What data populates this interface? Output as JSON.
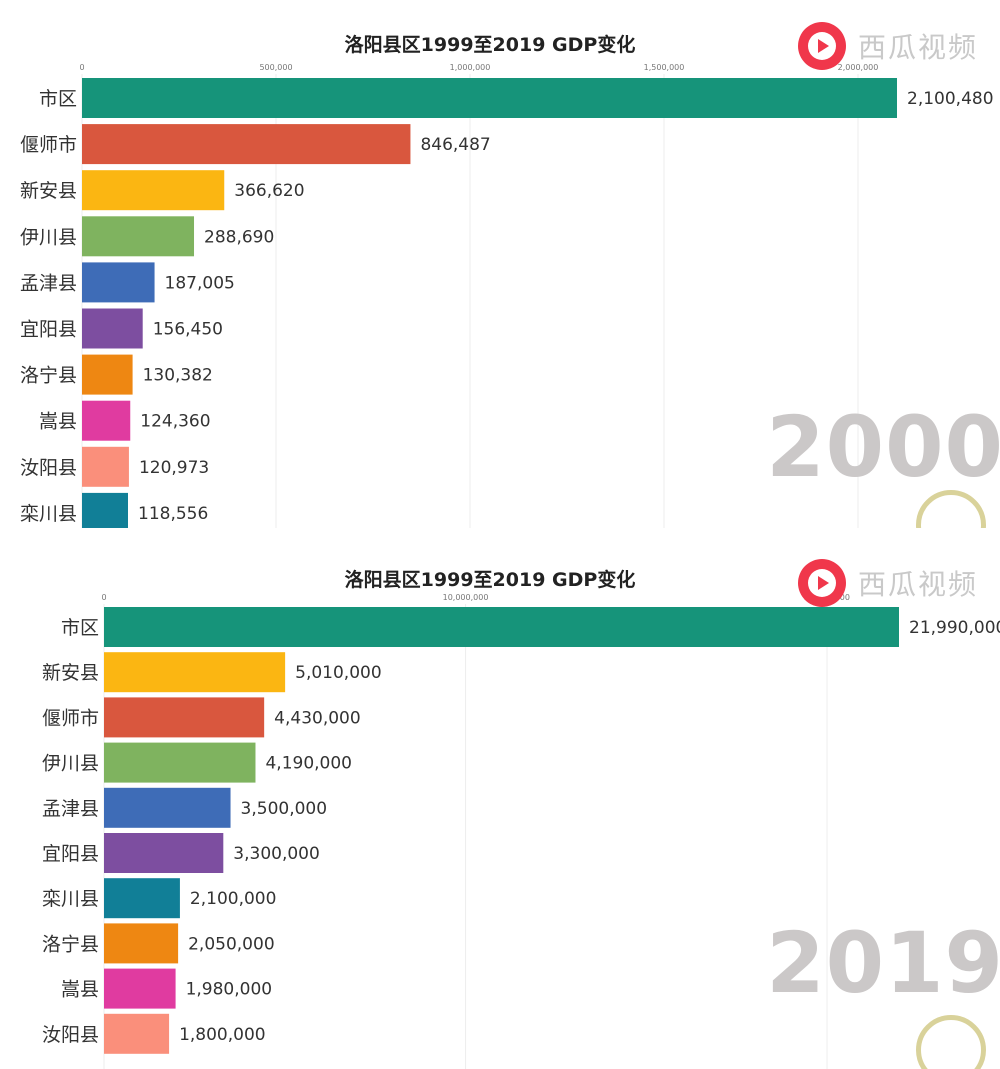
{
  "watermark": {
    "text": "西瓜视频"
  },
  "chart_data": [
    {
      "type": "bar",
      "title": "洛阳县区1999至2019 GDP变化",
      "year": "2000",
      "xlim": [
        0,
        2100480
      ],
      "ticks": [
        {
          "value": 0,
          "label": "0"
        },
        {
          "value": 500000,
          "label": "500,000"
        },
        {
          "value": 1000000,
          "label": "1,000,000"
        },
        {
          "value": 1500000,
          "label": "1,500,000"
        },
        {
          "value": 2000000,
          "label": "2,000,000"
        }
      ],
      "categories": [
        "市区",
        "偃师市",
        "新安县",
        "伊川县",
        "孟津县",
        "宜阳县",
        "洛宁县",
        "嵩县",
        "汝阳县",
        "栾川县"
      ],
      "values": [
        2100480,
        846487,
        366620,
        288690,
        187005,
        156450,
        130382,
        124360,
        120973,
        118556
      ],
      "value_labels": [
        "2,100,480",
        "846,487",
        "366,620",
        "288,690",
        "187,005",
        "156,450",
        "130,382",
        "124,360",
        "120,973",
        "118,556"
      ],
      "colors": [
        "#16947a",
        "#d9573e",
        "#fbb612",
        "#7fb35f",
        "#3e6cb7",
        "#7d4ea0",
        "#ee8712",
        "#e03ba0",
        "#fa8f7b",
        "#117f97"
      ]
    },
    {
      "type": "bar",
      "title": "洛阳县区1999至2019 GDP变化",
      "year": "2019",
      "xlim": [
        0,
        21990000
      ],
      "ticks": [
        {
          "value": 0,
          "label": "0"
        },
        {
          "value": 10000000,
          "label": "10,000,000"
        },
        {
          "value": 20000000,
          "label": "20,000,000"
        }
      ],
      "categories": [
        "市区",
        "新安县",
        "偃师市",
        "伊川县",
        "孟津县",
        "宜阳县",
        "栾川县",
        "洛宁县",
        "嵩县",
        "汝阳县"
      ],
      "values": [
        21990000,
        5010000,
        4430000,
        4190000,
        3500000,
        3300000,
        2100000,
        2050000,
        1980000,
        1800000
      ],
      "value_labels": [
        "21,990,000",
        "5,010,000",
        "4,430,000",
        "4,190,000",
        "3,500,000",
        "3,300,000",
        "2,100,000",
        "2,050,000",
        "1,980,000",
        "1,800,000"
      ],
      "colors": [
        "#16947a",
        "#fbb612",
        "#d9573e",
        "#7fb35f",
        "#3e6cb7",
        "#7d4ea0",
        "#117f97",
        "#ee8712",
        "#e03ba0",
        "#fa8f7b"
      ]
    }
  ]
}
